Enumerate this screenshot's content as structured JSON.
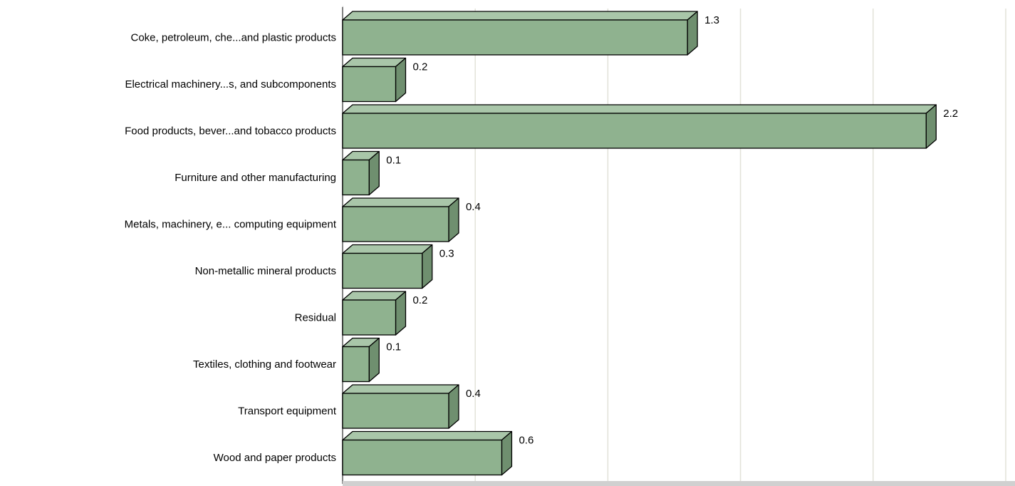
{
  "chart_data": {
    "type": "bar",
    "orientation": "horizontal",
    "categories": [
      "Coke, petroleum, che...and plastic products",
      "Electrical machinery...s, and subcomponents",
      "Food products, bever...and tobacco products",
      "Furniture and other manufacturing",
      "Metals, machinery, e... computing equipment",
      "Non-metallic mineral products",
      "Residual",
      "Textiles, clothing and footwear",
      "Transport equipment",
      "Wood and paper products"
    ],
    "values": [
      1.3,
      0.2,
      2.2,
      0.1,
      0.4,
      0.3,
      0.2,
      0.1,
      0.4,
      0.6
    ],
    "value_labels": [
      "1.3",
      "0.2",
      "2.2",
      "0.1",
      "0.4",
      "0.3",
      "0.2",
      "0.1",
      "0.4",
      "0.6"
    ],
    "xlim": [
      0,
      2.5
    ],
    "grid": true,
    "three_d": true,
    "colors": {
      "bar_front": "#8fb28f",
      "bar_top": "#a9c6a9",
      "bar_side": "#6f8f6f",
      "bar_stroke": "#000000",
      "grid": "#e2e2d8",
      "floor": "#d0d0d0",
      "wall": "#c8c8c8"
    }
  }
}
